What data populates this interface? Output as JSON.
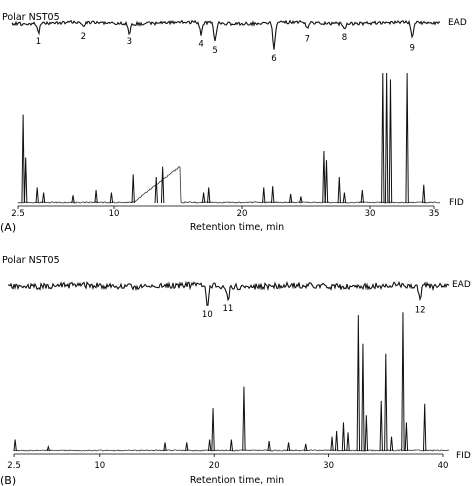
{
  "chart_data": [
    {
      "panel_letter": "(A)",
      "column_label": "Polar NST05",
      "type": "line",
      "xlabel": "Retention time, min",
      "xlim": [
        2.5,
        35
      ],
      "xticks": [
        2.5,
        10,
        20,
        30,
        35
      ],
      "xtick_labels": [
        "2.5",
        "10",
        "20",
        "30",
        "35"
      ],
      "series": [
        {
          "name": "EAD",
          "trace_label": "EAD",
          "responses": [
            {
              "label": "1",
              "x": 4.1,
              "depth": 0.35
            },
            {
              "label": "2",
              "x": 7.6,
              "depth": 0.15
            },
            {
              "label": "3",
              "x": 11.2,
              "depth": 0.35
            },
            {
              "label": "4",
              "x": 16.8,
              "depth": 0.45
            },
            {
              "label": "5",
              "x": 17.9,
              "depth": 0.7
            },
            {
              "label": "6",
              "x": 22.5,
              "depth": 1.0
            },
            {
              "label": "7",
              "x": 25.1,
              "depth": 0.25
            },
            {
              "label": "8",
              "x": 28.0,
              "depth": 0.2
            },
            {
              "label": "9",
              "x": 33.3,
              "depth": 0.6
            }
          ]
        },
        {
          "name": "FID",
          "trace_label": "FID",
          "peaks": [
            {
              "x": 2.9,
              "h": 0.68
            },
            {
              "x": 3.1,
              "h": 0.35
            },
            {
              "x": 4.0,
              "h": 0.12
            },
            {
              "x": 4.5,
              "h": 0.08
            },
            {
              "x": 6.8,
              "h": 0.06
            },
            {
              "x": 8.6,
              "h": 0.1
            },
            {
              "x": 9.8,
              "h": 0.08
            },
            {
              "x": 11.5,
              "h": 0.22
            },
            {
              "x": 13.3,
              "h": 0.2
            },
            {
              "x": 13.8,
              "h": 0.28
            },
            {
              "x": 17.0,
              "h": 0.08
            },
            {
              "x": 17.4,
              "h": 0.12
            },
            {
              "x": 21.7,
              "h": 0.12
            },
            {
              "x": 22.4,
              "h": 0.13
            },
            {
              "x": 23.8,
              "h": 0.07
            },
            {
              "x": 24.6,
              "h": 0.05
            },
            {
              "x": 26.4,
              "h": 0.4
            },
            {
              "x": 26.6,
              "h": 0.33
            },
            {
              "x": 27.6,
              "h": 0.2
            },
            {
              "x": 28.0,
              "h": 0.08
            },
            {
              "x": 29.4,
              "h": 0.1
            },
            {
              "x": 31.0,
              "h": 1.0
            },
            {
              "x": 31.3,
              "h": 1.0
            },
            {
              "x": 31.6,
              "h": 0.95
            },
            {
              "x": 32.9,
              "h": 1.0
            },
            {
              "x": 34.2,
              "h": 0.14
            }
          ],
          "hump": {
            "from": 11.5,
            "to": 15.2,
            "h": 0.28
          }
        }
      ]
    },
    {
      "panel_letter": "(B)",
      "column_label": "Polar NST05",
      "type": "line",
      "xlabel": "Retention time, min",
      "xlim": [
        2.5,
        40
      ],
      "xticks": [
        2.5,
        10,
        20,
        30,
        40
      ],
      "xtick_labels": [
        "2.5",
        "10",
        "20",
        "30",
        "40"
      ],
      "series": [
        {
          "name": "EAD",
          "trace_label": "EAD",
          "responses": [
            {
              "label": "10",
              "x": 19.4,
              "depth": 0.8
            },
            {
              "label": "11",
              "x": 21.2,
              "depth": 0.55
            },
            {
              "label": "12",
              "x": 38.0,
              "depth": 0.6
            }
          ]
        },
        {
          "name": "FID",
          "trace_label": "FID",
          "peaks": [
            {
              "x": 2.6,
              "h": 0.08
            },
            {
              "x": 5.5,
              "h": 0.03
            },
            {
              "x": 15.7,
              "h": 0.06
            },
            {
              "x": 17.6,
              "h": 0.06
            },
            {
              "x": 19.6,
              "h": 0.08
            },
            {
              "x": 19.9,
              "h": 0.3
            },
            {
              "x": 21.5,
              "h": 0.08
            },
            {
              "x": 22.6,
              "h": 0.45
            },
            {
              "x": 24.8,
              "h": 0.07
            },
            {
              "x": 26.5,
              "h": 0.06
            },
            {
              "x": 28.0,
              "h": 0.05
            },
            {
              "x": 30.3,
              "h": 0.1
            },
            {
              "x": 30.7,
              "h": 0.14
            },
            {
              "x": 31.3,
              "h": 0.2
            },
            {
              "x": 31.7,
              "h": 0.13
            },
            {
              "x": 32.6,
              "h": 0.95
            },
            {
              "x": 33.0,
              "h": 0.75
            },
            {
              "x": 33.3,
              "h": 0.25
            },
            {
              "x": 34.6,
              "h": 0.35
            },
            {
              "x": 35.0,
              "h": 0.68
            },
            {
              "x": 35.5,
              "h": 0.1
            },
            {
              "x": 36.5,
              "h": 0.97
            },
            {
              "x": 36.8,
              "h": 0.2
            },
            {
              "x": 38.4,
              "h": 0.33
            }
          ]
        }
      ]
    }
  ]
}
